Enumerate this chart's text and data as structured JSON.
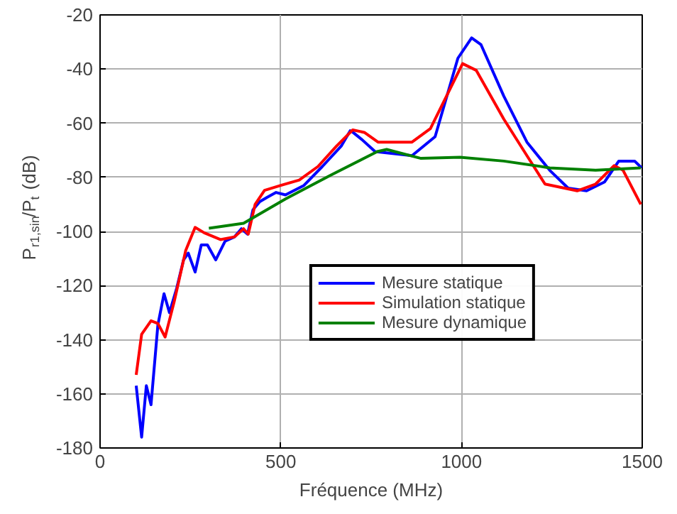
{
  "chart_data": {
    "type": "line",
    "xlabel": "Fréquence (MHz)",
    "ylabel": "P$_{r1,sin}$/P$_{t}$ (dB)",
    "xlim": [
      0,
      1500
    ],
    "xticks": [
      0,
      500,
      1000,
      1500
    ],
    "ylim": [
      -180,
      -20
    ],
    "yticks": [
      -180,
      -160,
      -140,
      -120,
      -100,
      -80,
      -60,
      -40,
      -20
    ],
    "grid": true,
    "legend": "bottom right",
    "marker": "none",
    "line_style": "solid",
    "series": [
      {
        "name": "Mesure statique",
        "color": "#0000ff",
        "x": [
          100,
          115,
          128,
          141,
          160,
          177,
          192,
          212,
          231,
          244,
          263,
          280,
          297,
          320,
          346,
          372,
          391,
          408,
          423,
          442,
          462,
          487,
          513,
          564,
          615,
          667,
          692,
          699,
          724,
          761,
          863,
          927,
          990,
          1028,
          1054,
          1117,
          1181,
          1244,
          1295,
          1346,
          1396,
          1435,
          1479,
          1498
        ],
        "values": [
          -157,
          -176,
          -157,
          -164,
          -134.5,
          -123,
          -130,
          -121,
          -110.5,
          -108,
          -115,
          -105,
          -105,
          -110.5,
          -103.6,
          -102,
          -99,
          -101,
          -92,
          -89,
          -87.4,
          -85.6,
          -86.5,
          -83,
          -76,
          -68.5,
          -62.8,
          -63.3,
          -66,
          -70.5,
          -72,
          -65,
          -36,
          -28.5,
          -31,
          -50,
          -67,
          -77.4,
          -84,
          -85,
          -81.7,
          -74,
          -74,
          -76.5
        ]
      },
      {
        "name": "Simulation statique",
        "color": "#ff0000",
        "x": [
          100,
          115,
          141,
          160,
          180,
          205,
          237,
          263,
          288,
          333,
          372,
          397,
          410,
          429,
          455,
          500,
          551,
          603,
          654,
          699,
          731,
          769,
          863,
          914,
          1003,
          1041,
          1117,
          1181,
          1231,
          1320,
          1371,
          1422,
          1447,
          1496
        ],
        "values": [
          -153,
          -138,
          -133,
          -134,
          -139,
          -126,
          -107,
          -98.5,
          -100.5,
          -103,
          -102,
          -99,
          -101,
          -90,
          -84.8,
          -83,
          -81,
          -76,
          -68.5,
          -62.5,
          -63.4,
          -67,
          -67,
          -62,
          -38,
          -40.5,
          -58.5,
          -72,
          -82.5,
          -85,
          -82.5,
          -75.7,
          -77.4,
          -90
        ]
      },
      {
        "name": "Mesure dynamique",
        "color": "#008000",
        "x": [
          301,
          397,
          513,
          641,
          767,
          793,
          888,
          996,
          1117,
          1244,
          1371,
          1496
        ],
        "values": [
          -98.8,
          -97,
          -88,
          -79,
          -70.5,
          -69.7,
          -73,
          -72.6,
          -74,
          -76.5,
          -77.4,
          -76.5
        ]
      }
    ]
  }
}
